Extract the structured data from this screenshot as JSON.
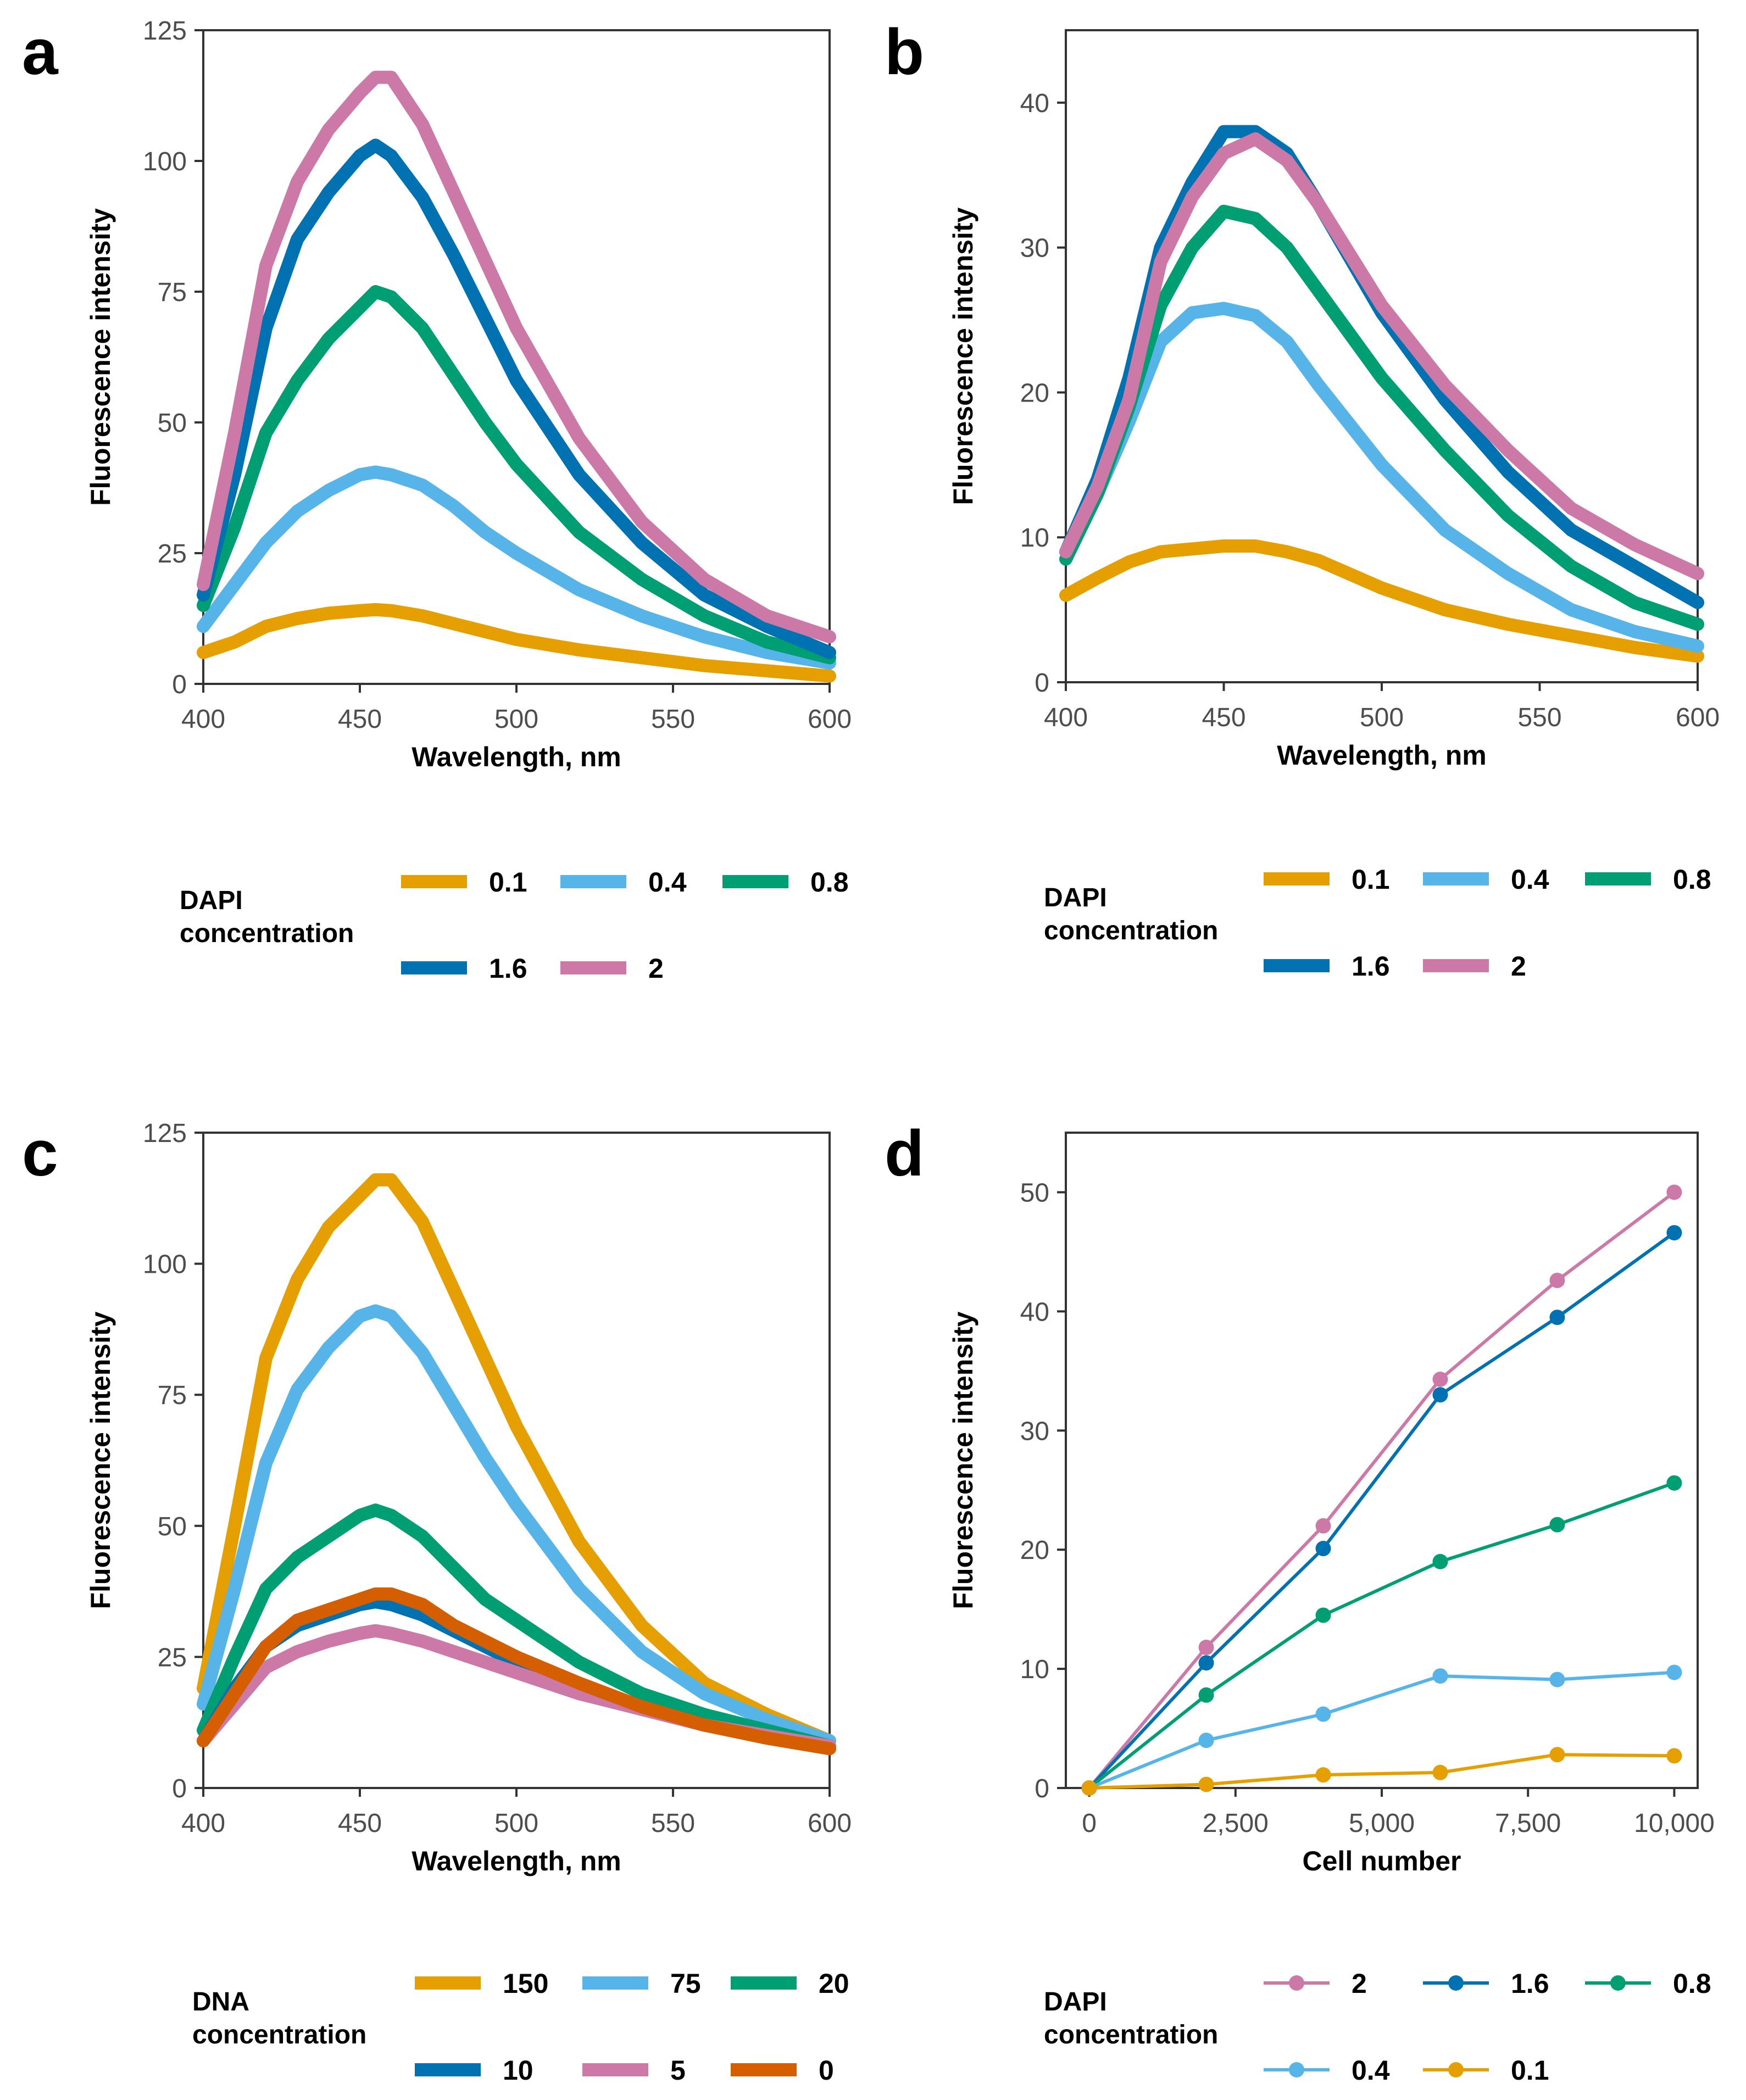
{
  "colors": {
    "orange": "#E69F00",
    "skyblue": "#56B4E9",
    "green": "#009E73",
    "blue": "#0072B2",
    "pink": "#CC79A7",
    "vermillion": "#D55E00"
  },
  "chart_data": [
    {
      "panel_label": "a",
      "type": "line",
      "xlabel": "Wavelength, nm",
      "ylabel": "Fluorescence intensity",
      "xlim": [
        400,
        600
      ],
      "ylim": [
        0,
        125
      ],
      "xticks": [
        400,
        450,
        500,
        550,
        600
      ],
      "xtick_labels": [
        "400",
        "450",
        "500",
        "550",
        "600"
      ],
      "yticks": [
        0,
        25,
        50,
        75,
        100,
        125
      ],
      "ytick_labels": [
        "0",
        "25",
        "50",
        "75",
        "100",
        "125"
      ],
      "grid": false,
      "legend_title": "DAPI\nconcentration",
      "legend_position": "bottom",
      "series": [
        {
          "name": "0.1",
          "color": "#E69F00",
          "x": [
            400,
            410,
            420,
            430,
            440,
            450,
            455,
            460,
            470,
            480,
            490,
            500,
            520,
            540,
            560,
            580,
            600
          ],
          "values": [
            6,
            8,
            11,
            12.5,
            13.5,
            14,
            14.2,
            14,
            13,
            11.5,
            10,
            8.5,
            6.5,
            5,
            3.5,
            2.5,
            1.5
          ]
        },
        {
          "name": "0.4",
          "color": "#56B4E9",
          "x": [
            400,
            410,
            420,
            430,
            440,
            450,
            455,
            460,
            470,
            480,
            490,
            500,
            520,
            540,
            560,
            580,
            600
          ],
          "values": [
            11,
            19,
            27,
            33,
            37,
            40,
            40.5,
            40,
            38,
            34,
            29,
            25,
            18,
            13,
            9,
            6,
            4
          ]
        },
        {
          "name": "0.8",
          "color": "#009E73",
          "x": [
            400,
            410,
            420,
            430,
            440,
            450,
            455,
            460,
            470,
            480,
            490,
            500,
            520,
            540,
            560,
            580,
            600
          ],
          "values": [
            15,
            30,
            48,
            58,
            66,
            72,
            75,
            74,
            68,
            59,
            50,
            42,
            29,
            20,
            13,
            8,
            5
          ]
        },
        {
          "name": "1.6",
          "color": "#0072B2",
          "x": [
            400,
            410,
            420,
            430,
            440,
            450,
            455,
            460,
            470,
            480,
            490,
            500,
            520,
            540,
            560,
            580,
            600
          ],
          "values": [
            17,
            40,
            68,
            85,
            94,
            101,
            103,
            101,
            93,
            82,
            70,
            58,
            40,
            27,
            17,
            11,
            6
          ]
        },
        {
          "name": "2",
          "color": "#CC79A7",
          "x": [
            400,
            410,
            420,
            430,
            440,
            450,
            455,
            460,
            470,
            480,
            490,
            500,
            520,
            540,
            560,
            580,
            600
          ],
          "values": [
            19,
            48,
            80,
            96,
            106,
            113,
            116,
            116,
            107,
            94,
            81,
            68,
            47,
            31,
            20,
            13,
            9
          ]
        }
      ]
    },
    {
      "panel_label": "b",
      "type": "line",
      "xlabel": "Wavelength, nm",
      "ylabel": "Fluorescence intensity",
      "xlim": [
        400,
        600
      ],
      "ylim": [
        0,
        45
      ],
      "xticks": [
        400,
        450,
        500,
        550,
        600
      ],
      "xtick_labels": [
        "400",
        "450",
        "500",
        "550",
        "600"
      ],
      "yticks": [
        0,
        10,
        20,
        30,
        40
      ],
      "ytick_labels": [
        "0",
        "10",
        "20",
        "30",
        "40"
      ],
      "grid": false,
      "legend_title": "DAPI\nconcentration",
      "legend_position": "bottom",
      "series": [
        {
          "name": "0.1",
          "color": "#E69F00",
          "x": [
            400,
            410,
            420,
            430,
            440,
            450,
            460,
            470,
            480,
            500,
            520,
            540,
            560,
            580,
            600
          ],
          "values": [
            6,
            7.2,
            8.3,
            9,
            9.2,
            9.4,
            9.4,
            9,
            8.4,
            6.5,
            5,
            4,
            3.2,
            2.4,
            1.8
          ]
        },
        {
          "name": "0.4",
          "color": "#56B4E9",
          "x": [
            400,
            410,
            420,
            430,
            440,
            450,
            460,
            470,
            480,
            500,
            520,
            540,
            560,
            580,
            600
          ],
          "values": [
            9,
            13,
            18,
            23.5,
            25.5,
            25.8,
            25.3,
            23.5,
            20.5,
            15,
            10.5,
            7.5,
            5,
            3.5,
            2.5
          ]
        },
        {
          "name": "0.8",
          "color": "#009E73",
          "x": [
            400,
            410,
            420,
            430,
            440,
            450,
            460,
            470,
            480,
            500,
            520,
            540,
            560,
            580,
            600
          ],
          "values": [
            8.5,
            13,
            19,
            26,
            30,
            32.5,
            32,
            30,
            27,
            21,
            16,
            11.5,
            8,
            5.5,
            4
          ]
        },
        {
          "name": "1.6",
          "color": "#0072B2",
          "x": [
            400,
            410,
            420,
            430,
            440,
            450,
            460,
            470,
            480,
            500,
            520,
            540,
            560,
            580,
            600
          ],
          "values": [
            9,
            14,
            21,
            30,
            34.5,
            38,
            38,
            36.5,
            33,
            25.5,
            19.5,
            14.5,
            10.5,
            8,
            5.5
          ]
        },
        {
          "name": "2",
          "color": "#CC79A7",
          "x": [
            400,
            410,
            420,
            430,
            440,
            450,
            460,
            470,
            480,
            500,
            520,
            540,
            560,
            580,
            600
          ],
          "values": [
            9,
            13.5,
            19.5,
            29,
            33.5,
            36.5,
            37.5,
            36,
            33,
            26,
            20.5,
            16,
            12,
            9.5,
            7.5
          ]
        }
      ]
    },
    {
      "panel_label": "c",
      "type": "line",
      "xlabel": "Wavelength, nm",
      "ylabel": "Fluorescence intensity",
      "xlim": [
        400,
        600
      ],
      "ylim": [
        0,
        125
      ],
      "xticks": [
        400,
        450,
        500,
        550,
        600
      ],
      "xtick_labels": [
        "400",
        "450",
        "500",
        "550",
        "600"
      ],
      "yticks": [
        0,
        25,
        50,
        75,
        100,
        125
      ],
      "ytick_labels": [
        "0",
        "25",
        "50",
        "75",
        "100",
        "125"
      ],
      "grid": false,
      "legend_title": "DNA\nconcentration",
      "legend_position": "bottom",
      "series": [
        {
          "name": "150",
          "color": "#E69F00",
          "x": [
            400,
            410,
            420,
            430,
            440,
            450,
            455,
            460,
            470,
            480,
            490,
            500,
            520,
            540,
            560,
            580,
            600
          ],
          "values": [
            19,
            50,
            82,
            97,
            107,
            113,
            116,
            116,
            108,
            95,
            82,
            69,
            47,
            31,
            20,
            14,
            9
          ]
        },
        {
          "name": "75",
          "color": "#56B4E9",
          "x": [
            400,
            410,
            420,
            430,
            440,
            450,
            455,
            460,
            470,
            480,
            490,
            500,
            520,
            540,
            560,
            580,
            600
          ],
          "values": [
            16,
            38,
            62,
            76,
            84,
            90,
            91,
            90,
            83,
            73,
            63,
            54,
            38,
            26,
            18,
            13,
            9
          ]
        },
        {
          "name": "20",
          "color": "#009E73",
          "x": [
            400,
            410,
            420,
            430,
            440,
            450,
            455,
            460,
            470,
            480,
            490,
            500,
            520,
            540,
            560,
            580,
            600
          ],
          "values": [
            11,
            25,
            38,
            44,
            48,
            52,
            53,
            52,
            48,
            42,
            36,
            32,
            24,
            18,
            14,
            11,
            8
          ]
        },
        {
          "name": "10",
          "color": "#0072B2",
          "x": [
            400,
            410,
            420,
            430,
            440,
            450,
            455,
            460,
            470,
            480,
            490,
            500,
            520,
            540,
            560,
            580,
            600
          ],
          "values": [
            9,
            19,
            27,
            31,
            33,
            35,
            35.5,
            35,
            33,
            30,
            27,
            24,
            19,
            15,
            12,
            10,
            8
          ]
        },
        {
          "name": "5",
          "color": "#CC79A7",
          "x": [
            400,
            410,
            420,
            430,
            440,
            450,
            455,
            460,
            470,
            480,
            490,
            500,
            520,
            540,
            560,
            580,
            600
          ],
          "values": [
            9,
            16,
            23,
            26,
            28,
            29.5,
            30,
            29.5,
            28,
            26,
            24,
            22,
            18,
            15,
            12,
            10,
            8
          ]
        },
        {
          "name": "0",
          "color": "#D55E00",
          "x": [
            400,
            410,
            420,
            430,
            440,
            450,
            455,
            460,
            470,
            480,
            490,
            500,
            520,
            540,
            560,
            580,
            600
          ],
          "values": [
            9,
            18,
            27,
            32,
            34,
            36,
            37,
            37,
            35,
            31,
            28,
            25,
            20,
            15.5,
            12,
            9.5,
            7.5
          ]
        }
      ]
    },
    {
      "panel_label": "d",
      "type": "line",
      "markers": true,
      "xlabel": "Cell number",
      "ylabel": "Fluorescence intensity",
      "xlim": [
        -400,
        10400
      ],
      "ylim": [
        0,
        55
      ],
      "xticks": [
        0,
        2500,
        5000,
        7500,
        10000
      ],
      "xtick_labels": [
        "0",
        "2,500",
        "5,000",
        "7,500",
        "10,000"
      ],
      "yticks": [
        0,
        10,
        20,
        30,
        40,
        50
      ],
      "ytick_labels": [
        "0",
        "10",
        "20",
        "30",
        "40",
        "50"
      ],
      "grid": false,
      "legend_title": "DAPI\nconcentration",
      "legend_position": "bottom",
      "series": [
        {
          "name": "2",
          "color": "#CC79A7",
          "x": [
            0,
            2000,
            4000,
            6000,
            8000,
            10000
          ],
          "values": [
            0,
            11.8,
            22,
            34.3,
            42.6,
            50
          ]
        },
        {
          "name": "1.6",
          "color": "#0072B2",
          "x": [
            0,
            2000,
            4000,
            6000,
            8000,
            10000
          ],
          "values": [
            0,
            10.5,
            20.1,
            33,
            39.5,
            46.6
          ]
        },
        {
          "name": "0.8",
          "color": "#009E73",
          "x": [
            0,
            2000,
            4000,
            6000,
            8000,
            10000
          ],
          "values": [
            0,
            7.8,
            14.5,
            19,
            22.1,
            25.6
          ]
        },
        {
          "name": "0.4",
          "color": "#56B4E9",
          "x": [
            0,
            2000,
            4000,
            6000,
            8000,
            10000
          ],
          "values": [
            0,
            4,
            6.2,
            9.4,
            9.1,
            9.7
          ]
        },
        {
          "name": "0.1",
          "color": "#E69F00",
          "x": [
            0,
            2000,
            4000,
            6000,
            8000,
            10000
          ],
          "values": [
            0,
            0.3,
            1.1,
            1.3,
            2.8,
            2.7
          ]
        }
      ]
    }
  ]
}
